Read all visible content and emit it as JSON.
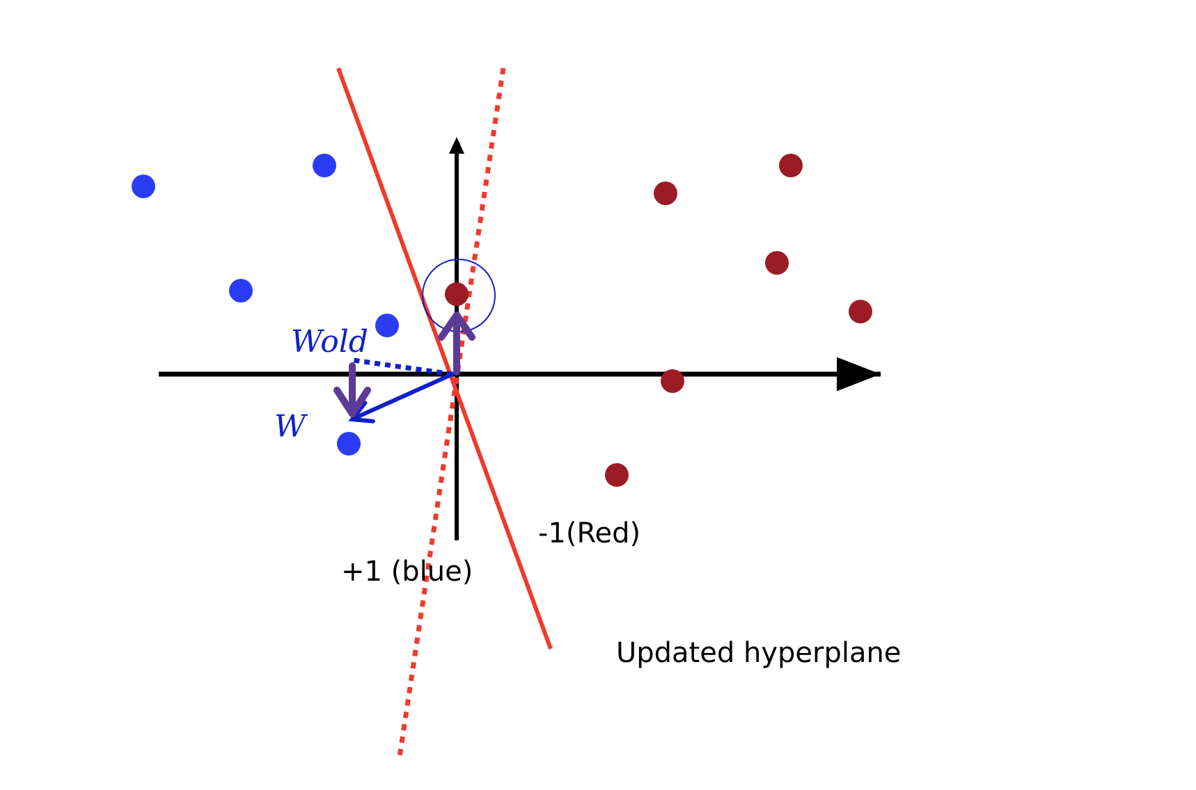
{
  "colors": {
    "blue_point": "#2a3df5",
    "red_point": "#9b1c25",
    "hyperplane": "#ef3a2c",
    "vector": "#1020c8",
    "update": "#5c3a98",
    "axis": "#000000"
  },
  "labels": {
    "w_old": "Wold",
    "w": "W",
    "positive_class": "+1 (blue)",
    "negative_class": "-1(Red)",
    "updated_hyperplane": "Updated hyperplane"
  },
  "points": {
    "blue": [
      {
        "x": -4.5,
        "y": 2.7
      },
      {
        "x": -1.9,
        "y": 3.0
      },
      {
        "x": -3.1,
        "y": 1.2
      },
      {
        "x": -1.0,
        "y": 0.7
      },
      {
        "x": -1.55,
        "y": -1.0
      }
    ],
    "red": [
      {
        "x": 3.0,
        "y": 2.6
      },
      {
        "x": 4.8,
        "y": 3.0
      },
      {
        "x": 4.6,
        "y": 1.6
      },
      {
        "x": 5.8,
        "y": 0.9
      },
      {
        "x": 3.1,
        "y": -0.1
      },
      {
        "x": 2.3,
        "y": -1.45
      },
      {
        "x": 0.0,
        "y": 1.15,
        "misclassified": true
      }
    ]
  },
  "vectors": {
    "w_old": {
      "x": -1.5,
      "y": 0.2
    },
    "w": {
      "x": -1.5,
      "y": -0.65
    }
  },
  "hyperplanes": {
    "old": {
      "x1": 0.67,
      "y1": 4.4,
      "x2": -0.82,
      "y2": -5.5
    },
    "updated": {
      "x1": -1.7,
      "y1": 4.4,
      "x2": 1.35,
      "y2": -3.95
    }
  }
}
